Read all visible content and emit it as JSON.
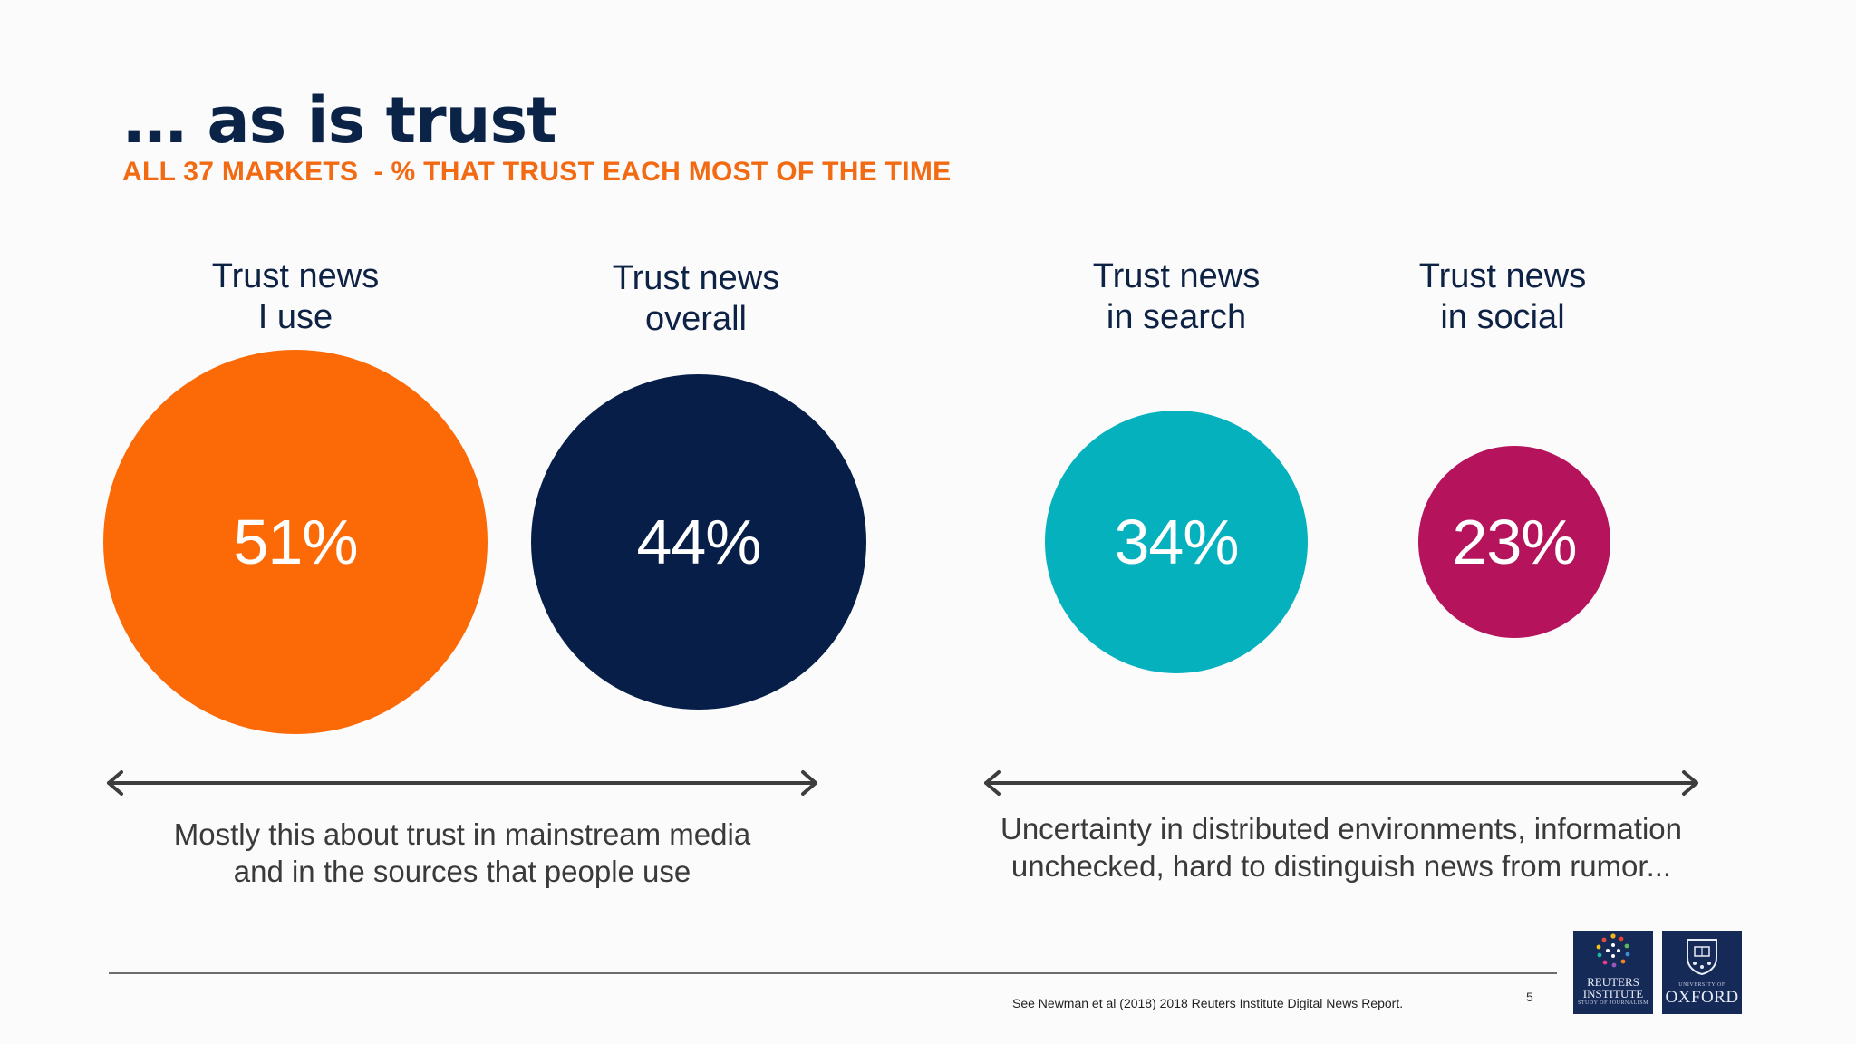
{
  "slide": {
    "title": "… as is trust",
    "subtitle": "ALL 37 MARKETS  - % THAT TRUST EACH MOST OF THE TIME"
  },
  "chart_data": {
    "type": "bubble",
    "categories": [
      "Trust news I use",
      "Trust news overall",
      "Trust news in search",
      "Trust news in social"
    ],
    "values": [
      51,
      44,
      34,
      23
    ],
    "unit": "%",
    "colors": [
      "#fb6a06",
      "#071f48",
      "#06b1be",
      "#b5145c"
    ]
  },
  "labels": [
    {
      "line1": "Trust news",
      "line2": "I use"
    },
    {
      "line1": "Trust news",
      "line2": "overall"
    },
    {
      "line1": "Trust news",
      "line2": "in search"
    },
    {
      "line1": "Trust news",
      "line2": "in social"
    }
  ],
  "bubbles": [
    {
      "text": "51%"
    },
    {
      "text": "44%"
    },
    {
      "text": "34%"
    },
    {
      "text": "23%"
    }
  ],
  "captions": {
    "left": {
      "line1": "Mostly this about trust in mainstream media",
      "line2": "and in the sources that people use"
    },
    "right": {
      "line1": "Uncertainty in distributed environments, information",
      "line2": "unchecked, hard to distinguish news from rumor..."
    }
  },
  "footer": {
    "source": "See Newman et al (2018) 2018 Reuters Institute Digital News Report.",
    "page_number": "5"
  },
  "logos": {
    "reuters": {
      "line1": "REUTERS",
      "line2": "INSTITUTE",
      "tagline": "STUDY OF JOURNALISM"
    },
    "oxford": {
      "small": "UNIVERSITY OF",
      "name": "OXFORD"
    }
  },
  "colors": {
    "title": "#0b2346",
    "subtitle": "#f26a12",
    "arrow": "#3d3d3d",
    "logo_bg": "#162a58"
  }
}
